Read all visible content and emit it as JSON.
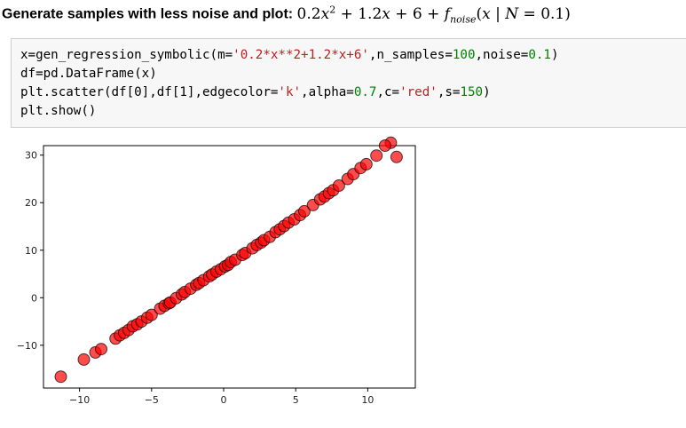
{
  "heading": {
    "prefix": "Generate samples with less noise and plot: ",
    "formula": {
      "c2": "0.2",
      "var": "x",
      "exp": "2",
      "plus1": " + 1.2",
      "var2": "x",
      "plus2": " + 6 + ",
      "f": "f",
      "fsub": "noise",
      "args_open": "(",
      "arg": "x",
      "bar": " | ",
      "N": "N",
      "eq": " = 0.1)"
    }
  },
  "code": {
    "line1": {
      "a": "x=gen_regression_symbolic(m=",
      "str": "'0.2*x**2+1.2*x+6'",
      "b": ",n_samples=",
      "num1": "100",
      "c": ",noise=",
      "num2": "0.1",
      "d": ")"
    },
    "line2": "df=pd.DataFrame(x)",
    "line3": {
      "a": "plt.scatter(df[0],df[1],edgecolor=",
      "str1": "'k'",
      "b": ",alpha=",
      "num1": "0.7",
      "c": ",c=",
      "str2": "'red'",
      "d": ",s=",
      "num2": "150",
      "e": ")"
    },
    "line4": "plt.show()"
  },
  "colors": {
    "marker_fill": "#ff0000",
    "marker_edge": "#000000",
    "code_string": "#ba2121",
    "code_number": "#008000",
    "cell_bg": "#f7f7f7"
  },
  "chart_data": {
    "type": "scatter",
    "title": "",
    "xlabel": "",
    "ylabel": "",
    "xlim": [
      -12.5,
      13.3
    ],
    "ylim": [
      -19.0,
      32.0
    ],
    "xticks": [
      -10,
      -5,
      0,
      5,
      10
    ],
    "yticks": [
      -10,
      0,
      10,
      20,
      30
    ],
    "xtick_labels": [
      "−10",
      "−5",
      "0",
      "5",
      "10"
    ],
    "ytick_labels": [
      "−10",
      "0",
      "10",
      "20",
      "30"
    ],
    "grid": false,
    "marker_alpha": 0.7,
    "points": [
      {
        "x": -11.3,
        "y": -16.6
      },
      {
        "x": -9.7,
        "y": -13.0
      },
      {
        "x": -8.9,
        "y": -11.5
      },
      {
        "x": -8.5,
        "y": -10.8
      },
      {
        "x": -7.5,
        "y": -8.6
      },
      {
        "x": -7.2,
        "y": -7.9
      },
      {
        "x": -6.9,
        "y": -7.4
      },
      {
        "x": -6.6,
        "y": -6.8
      },
      {
        "x": -6.3,
        "y": -6.0
      },
      {
        "x": -6.0,
        "y": -5.6
      },
      {
        "x": -5.7,
        "y": -5.0
      },
      {
        "x": -5.3,
        "y": -4.2
      },
      {
        "x": -5.0,
        "y": -3.6
      },
      {
        "x": -4.4,
        "y": -2.3
      },
      {
        "x": -4.1,
        "y": -1.7
      },
      {
        "x": -3.8,
        "y": -1.2
      },
      {
        "x": -3.7,
        "y": -1.0
      },
      {
        "x": -3.3,
        "y": -0.1
      },
      {
        "x": -2.9,
        "y": 0.7
      },
      {
        "x": -2.7,
        "y": 1.2
      },
      {
        "x": -2.3,
        "y": 1.9
      },
      {
        "x": -1.9,
        "y": 2.7
      },
      {
        "x": -1.7,
        "y": 3.1
      },
      {
        "x": -1.4,
        "y": 3.7
      },
      {
        "x": -1.0,
        "y": 4.5
      },
      {
        "x": -0.8,
        "y": 4.9
      },
      {
        "x": -0.5,
        "y": 5.5
      },
      {
        "x": -0.2,
        "y": 6.0
      },
      {
        "x": 0.1,
        "y": 6.6
      },
      {
        "x": 0.3,
        "y": 6.9
      },
      {
        "x": 0.5,
        "y": 7.5
      },
      {
        "x": 0.8,
        "y": 8.0
      },
      {
        "x": 1.3,
        "y": 9.0
      },
      {
        "x": 1.5,
        "y": 9.4
      },
      {
        "x": 2.0,
        "y": 10.4
      },
      {
        "x": 2.3,
        "y": 11.1
      },
      {
        "x": 2.6,
        "y": 11.6
      },
      {
        "x": 2.8,
        "y": 12.1
      },
      {
        "x": 3.2,
        "y": 12.8
      },
      {
        "x": 3.6,
        "y": 13.8
      },
      {
        "x": 3.9,
        "y": 14.4
      },
      {
        "x": 4.2,
        "y": 15.1
      },
      {
        "x": 4.5,
        "y": 15.8
      },
      {
        "x": 4.9,
        "y": 16.5
      },
      {
        "x": 5.3,
        "y": 17.4
      },
      {
        "x": 5.6,
        "y": 18.2
      },
      {
        "x": 6.2,
        "y": 19.5
      },
      {
        "x": 6.7,
        "y": 20.7
      },
      {
        "x": 7.0,
        "y": 21.3
      },
      {
        "x": 7.3,
        "y": 22.0
      },
      {
        "x": 7.6,
        "y": 22.6
      },
      {
        "x": 8.0,
        "y": 23.6
      },
      {
        "x": 8.6,
        "y": 25.0
      },
      {
        "x": 9.0,
        "y": 26.0
      },
      {
        "x": 9.5,
        "y": 27.3
      },
      {
        "x": 9.9,
        "y": 28.1
      },
      {
        "x": 10.6,
        "y": 29.9
      },
      {
        "x": 11.6,
        "y": 32.6
      },
      {
        "x": 12.0,
        "y": 29.6
      },
      {
        "x": 11.2,
        "y": 32.0
      }
    ]
  }
}
